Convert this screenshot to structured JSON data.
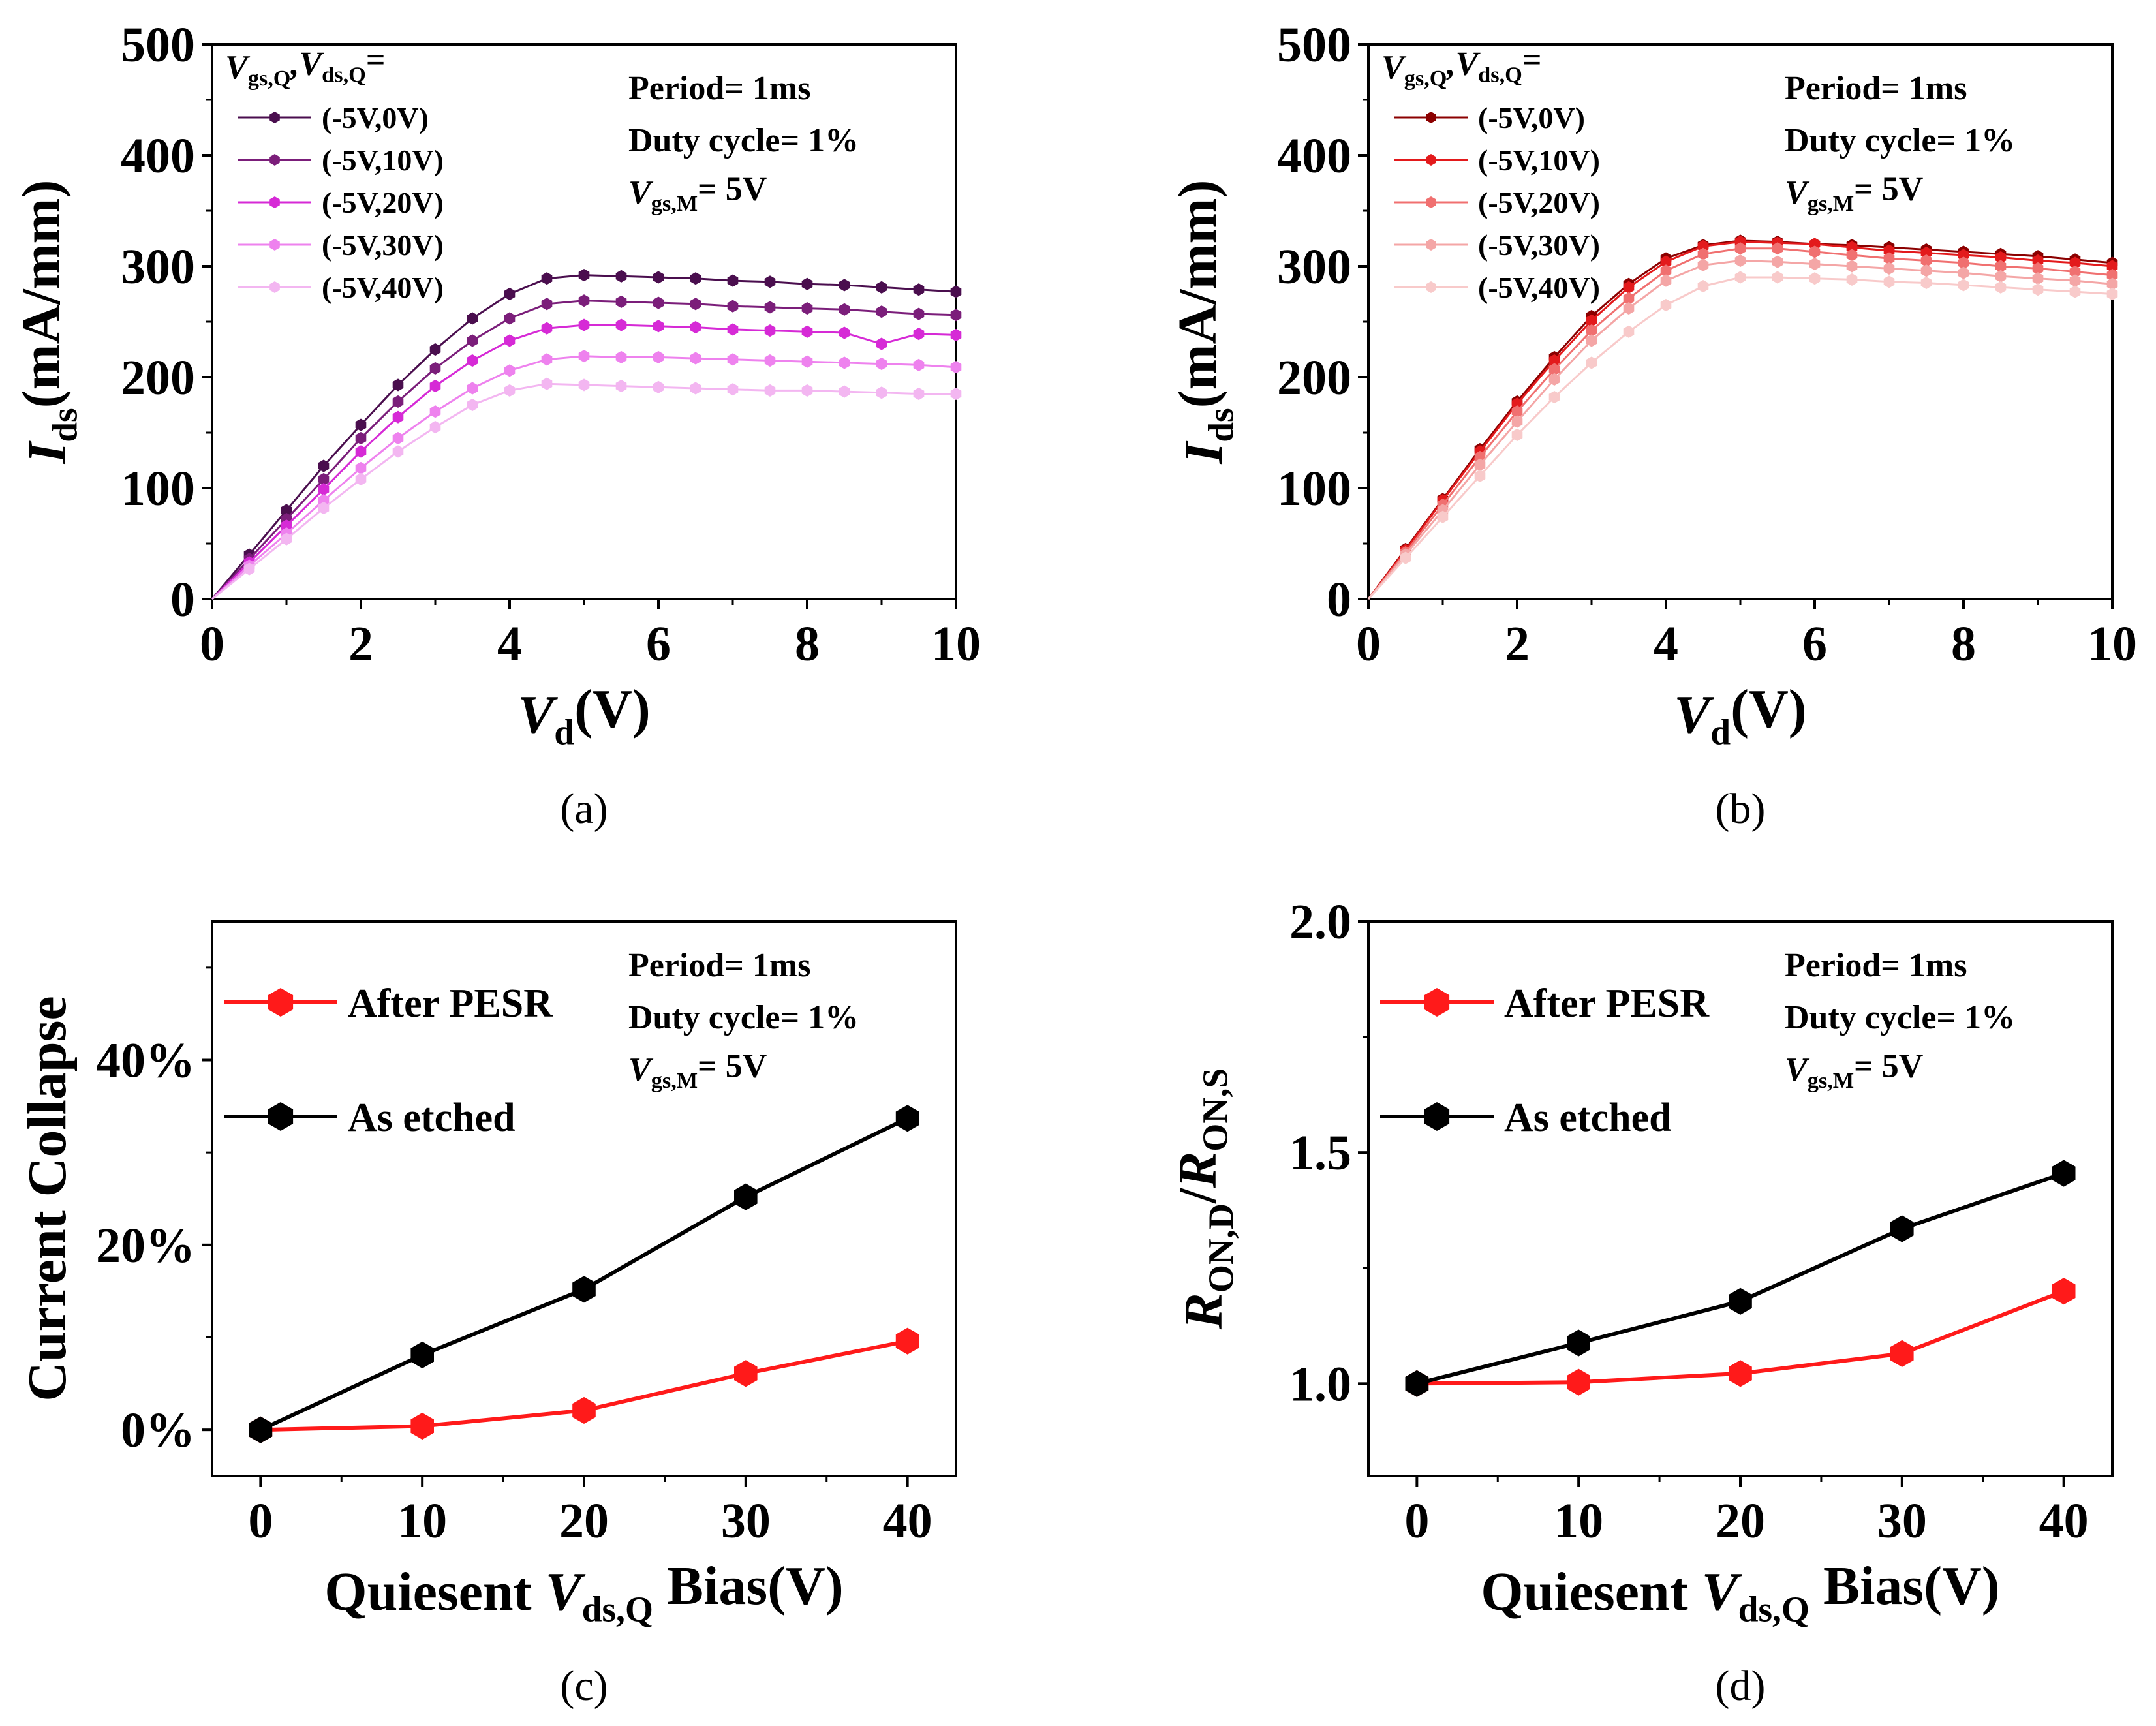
{
  "chart_data": [
    {
      "id": "a",
      "type": "line",
      "caption": "(a)",
      "ylabel_main": "I",
      "ylabel_sub": "ds",
      "ylabel_rest": "(mA/mm)",
      "xlabel_main": "V",
      "xlabel_sub": "d",
      "xlabel_rest": "(V)",
      "xlim": [
        0,
        10
      ],
      "ylim": [
        0,
        500
      ],
      "xticks": [
        0,
        2,
        4,
        6,
        8,
        10
      ],
      "yticks": [
        0,
        100,
        200,
        300,
        400,
        500
      ],
      "ytick_labels": [
        "0",
        "100",
        "200",
        "300",
        "400",
        "500"
      ],
      "legend_title_1": "V",
      "legend_title_sub1": "gs,Q",
      "legend_title_2": ",V",
      "legend_title_sub2": "ds,Q",
      "legend_title_3": "=",
      "info_1": "Period= 1ms",
      "info_2": "Duty cycle= 1%",
      "info_3_main": "V",
      "info_3_sub": "gs,M",
      "info_3_rest": "= 5V",
      "x": [
        0,
        0.5,
        1,
        1.5,
        2,
        2.5,
        3,
        3.5,
        4,
        4.5,
        5,
        5.5,
        6,
        6.5,
        7,
        7.5,
        8,
        8.5,
        9,
        9.5,
        10
      ],
      "series": [
        {
          "name": "(-5V,0V)",
          "color": "#4A0E4E",
          "values": [
            0,
            40,
            80,
            120,
            157,
            193,
            225,
            253,
            275,
            289,
            292,
            291,
            290,
            289,
            287,
            286,
            284,
            283,
            281,
            279,
            277
          ]
        },
        {
          "name": "(-5V,10V)",
          "color": "#7B1E7A",
          "values": [
            0,
            36,
            72,
            108,
            145,
            178,
            208,
            233,
            253,
            266,
            269,
            268,
            267,
            266,
            264,
            263,
            262,
            261,
            259,
            257,
            256
          ]
        },
        {
          "name": "(-5V,20V)",
          "color": "#D62AD6",
          "values": [
            0,
            33,
            66,
            99,
            133,
            164,
            192,
            215,
            233,
            244,
            247,
            247,
            246,
            245,
            243,
            242,
            241,
            240,
            230,
            239,
            238
          ]
        },
        {
          "name": "(-5V,30V)",
          "color": "#EE82EE",
          "values": [
            0,
            30,
            59,
            89,
            118,
            145,
            169,
            190,
            206,
            216,
            219,
            218,
            218,
            217,
            216,
            215,
            214,
            213,
            212,
            211,
            209
          ]
        },
        {
          "name": "(-5V,40V)",
          "color": "#F3B6F1",
          "values": [
            0,
            27,
            54,
            82,
            108,
            133,
            155,
            175,
            188,
            194,
            193,
            192,
            191,
            190,
            189,
            188,
            188,
            187,
            186,
            185,
            185
          ]
        }
      ]
    },
    {
      "id": "b",
      "type": "line",
      "caption": "(b)",
      "ylabel_main": "I",
      "ylabel_sub": "ds",
      "ylabel_rest": "(mA/mm)",
      "xlabel_main": "V",
      "xlabel_sub": "d",
      "xlabel_rest": "(V)",
      "xlim": [
        0,
        10
      ],
      "ylim": [
        0,
        500
      ],
      "xticks": [
        0,
        2,
        4,
        6,
        8,
        10
      ],
      "yticks": [
        0,
        100,
        200,
        300,
        400,
        500
      ],
      "ytick_labels": [
        "0",
        "100",
        "200",
        "300",
        "400",
        "500"
      ],
      "legend_title_1": "V",
      "legend_title_sub1": "gs,Q",
      "legend_title_2": ",V",
      "legend_title_sub2": "ds,Q",
      "legend_title_3": "=",
      "info_1": "Period= 1ms",
      "info_2": "Duty cycle= 1%",
      "info_3_main": "V",
      "info_3_sub": "gs,M",
      "info_3_rest": "= 5V",
      "x": [
        0,
        0.5,
        1,
        1.5,
        2,
        2.5,
        3,
        3.5,
        4,
        4.5,
        5,
        5.5,
        6,
        6.5,
        7,
        7.5,
        8,
        8.5,
        9,
        9.5,
        10
      ],
      "series": [
        {
          "name": "(-5V,0V)",
          "color": "#8B0000",
          "values": [
            0,
            45,
            90,
            135,
            178,
            218,
            255,
            284,
            307,
            319,
            323,
            322,
            320,
            319,
            317,
            315,
            313,
            311,
            309,
            306,
            303
          ]
        },
        {
          "name": "(-5V,10V)",
          "color": "#E31A1C",
          "values": [
            0,
            44,
            89,
            133,
            176,
            215,
            251,
            281,
            304,
            318,
            322,
            321,
            320,
            317,
            314,
            312,
            310,
            308,
            305,
            303,
            300
          ]
        },
        {
          "name": "(-5V,20V)",
          "color": "#F07070",
          "values": [
            0,
            42,
            85,
            128,
            169,
            207,
            242,
            271,
            296,
            311,
            316,
            316,
            313,
            310,
            307,
            305,
            303,
            300,
            298,
            295,
            292
          ]
        },
        {
          "name": "(-5V,30V)",
          "color": "#F4A6A6",
          "values": [
            0,
            40,
            80,
            121,
            160,
            198,
            233,
            262,
            287,
            301,
            305,
            304,
            302,
            300,
            298,
            296,
            294,
            291,
            289,
            287,
            284
          ]
        },
        {
          "name": "(-5V,40V)",
          "color": "#F8CACA",
          "values": [
            0,
            37,
            74,
            111,
            148,
            182,
            213,
            241,
            265,
            282,
            290,
            290,
            289,
            288,
            286,
            285,
            283,
            281,
            279,
            277,
            275
          ]
        }
      ]
    },
    {
      "id": "c",
      "type": "line",
      "caption": "(c)",
      "ylabel": "Current Collapse",
      "xlabel_pre": "Quiesent ",
      "xlabel_main": "V",
      "xlabel_sub": "ds,Q",
      "xlabel_rest": " Bias(V)",
      "xlim": [
        -3,
        43
      ],
      "ylim": [
        -5,
        55
      ],
      "xticks": [
        0,
        10,
        20,
        30,
        40
      ],
      "yticks": [
        0,
        20,
        40
      ],
      "ytick_labels": [
        "0%",
        "20%",
        "40%"
      ],
      "info_1": "Period= 1ms",
      "info_2": "Duty cycle= 1%",
      "info_3_main": "V",
      "info_3_sub": "gs,M",
      "info_3_rest": "= 5V",
      "x": [
        0,
        10,
        20,
        30,
        40
      ],
      "series": [
        {
          "name": "After PESR",
          "color": "#FF1A1A",
          "values": [
            0,
            0.4,
            2.1,
            6.1,
            9.6
          ]
        },
        {
          "name": "As etched",
          "color": "#000000",
          "values": [
            0,
            8.1,
            15.2,
            25.2,
            33.7
          ]
        }
      ]
    },
    {
      "id": "d",
      "type": "line",
      "caption": "(d)",
      "ylabel_main1": "R",
      "ylabel_sub1": "ON,D",
      "ylabel_mid": "/",
      "ylabel_main2": "R",
      "ylabel_sub2": "ON,S",
      "xlabel_pre": "Quiesent ",
      "xlabel_main": "V",
      "xlabel_sub": "ds,Q",
      "xlabel_rest": " Bias(V)",
      "xlim": [
        -3,
        43
      ],
      "ylim": [
        0.8,
        2.0
      ],
      "xticks": [
        0,
        10,
        20,
        30,
        40
      ],
      "yticks": [
        1.0,
        1.5,
        2.0
      ],
      "ytick_labels": [
        "1.0",
        "1.5",
        "2.0"
      ],
      "info_1": "Period= 1ms",
      "info_2": "Duty cycle= 1%",
      "info_3_main": "V",
      "info_3_sub": "gs,M",
      "info_3_rest": "= 5V",
      "x": [
        0,
        10,
        20,
        30,
        40
      ],
      "series": [
        {
          "name": "After PESR",
          "color": "#FF1A1A",
          "values": [
            1.0,
            1.003,
            1.022,
            1.065,
            1.2
          ]
        },
        {
          "name": "As etched",
          "color": "#000000",
          "values": [
            1.0,
            1.088,
            1.178,
            1.335,
            1.455
          ]
        }
      ]
    }
  ]
}
